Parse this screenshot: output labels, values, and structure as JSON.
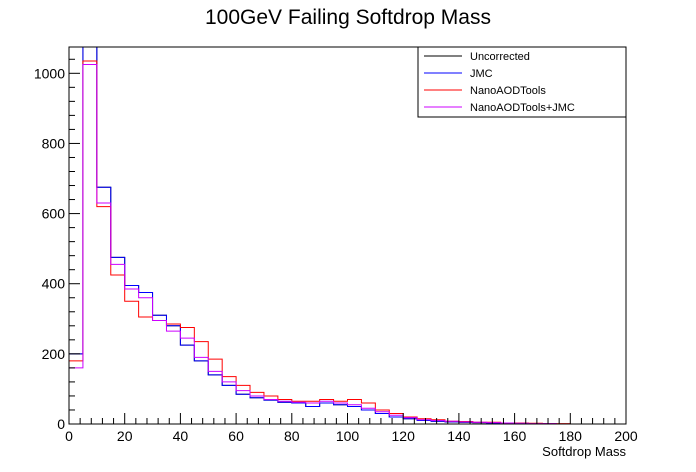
{
  "chart_data": {
    "type": "line",
    "title": "100GeV Failing Softdrop Mass",
    "xlabel": "Softdrop Mass",
    "ylabel": "",
    "xlim": [
      0,
      200
    ],
    "ylim": [
      0,
      1075
    ],
    "x_ticks": [
      0,
      20,
      40,
      60,
      80,
      100,
      120,
      140,
      160,
      180,
      200
    ],
    "y_ticks": [
      0,
      200,
      400,
      600,
      800,
      1000
    ],
    "grid": false,
    "legend_position": "top-right",
    "bin_edges": [
      0,
      5,
      10,
      15,
      20,
      25,
      30,
      35,
      40,
      45,
      50,
      55,
      60,
      65,
      70,
      75,
      80,
      85,
      90,
      95,
      100,
      105,
      110,
      115,
      120,
      125,
      130,
      135,
      140,
      145,
      150,
      155,
      160,
      165,
      170,
      175,
      180,
      185,
      190,
      195,
      200
    ],
    "series": [
      {
        "name": "Uncorrected",
        "color": "#000000",
        "values": [
          200,
          1160,
          675,
          475,
          395,
          375,
          310,
          280,
          225,
          180,
          140,
          110,
          85,
          75,
          68,
          62,
          60,
          50,
          60,
          55,
          50,
          40,
          30,
          20,
          15,
          10,
          8,
          6,
          5,
          4,
          3,
          2,
          2,
          1,
          1,
          0,
          0,
          0,
          0,
          0
        ]
      },
      {
        "name": "JMC",
        "color": "#0000ff",
        "values": [
          200,
          1160,
          675,
          475,
          395,
          375,
          310,
          280,
          225,
          180,
          140,
          110,
          85,
          75,
          68,
          62,
          60,
          50,
          60,
          55,
          50,
          40,
          30,
          20,
          15,
          10,
          8,
          6,
          5,
          4,
          3,
          2,
          2,
          1,
          1,
          0,
          0,
          0,
          0,
          0
        ]
      },
      {
        "name": "NanoAODTools",
        "color": "#ff0000",
        "values": [
          180,
          1035,
          620,
          425,
          350,
          305,
          295,
          285,
          275,
          235,
          185,
          135,
          110,
          90,
          80,
          70,
          65,
          65,
          70,
          65,
          70,
          60,
          40,
          30,
          20,
          15,
          12,
          8,
          7,
          5,
          5,
          3,
          3,
          2,
          1,
          1,
          0,
          0,
          0,
          0
        ]
      },
      {
        "name": "NanoAODTools+JMC",
        "color": "#cc00ff",
        "values": [
          160,
          1025,
          630,
          455,
          385,
          360,
          295,
          265,
          245,
          190,
          150,
          120,
          95,
          80,
          70,
          65,
          62,
          60,
          65,
          60,
          55,
          45,
          35,
          25,
          18,
          12,
          10,
          8,
          6,
          5,
          4,
          3,
          2,
          1,
          1,
          0,
          0,
          0,
          0,
          0
        ]
      }
    ]
  }
}
